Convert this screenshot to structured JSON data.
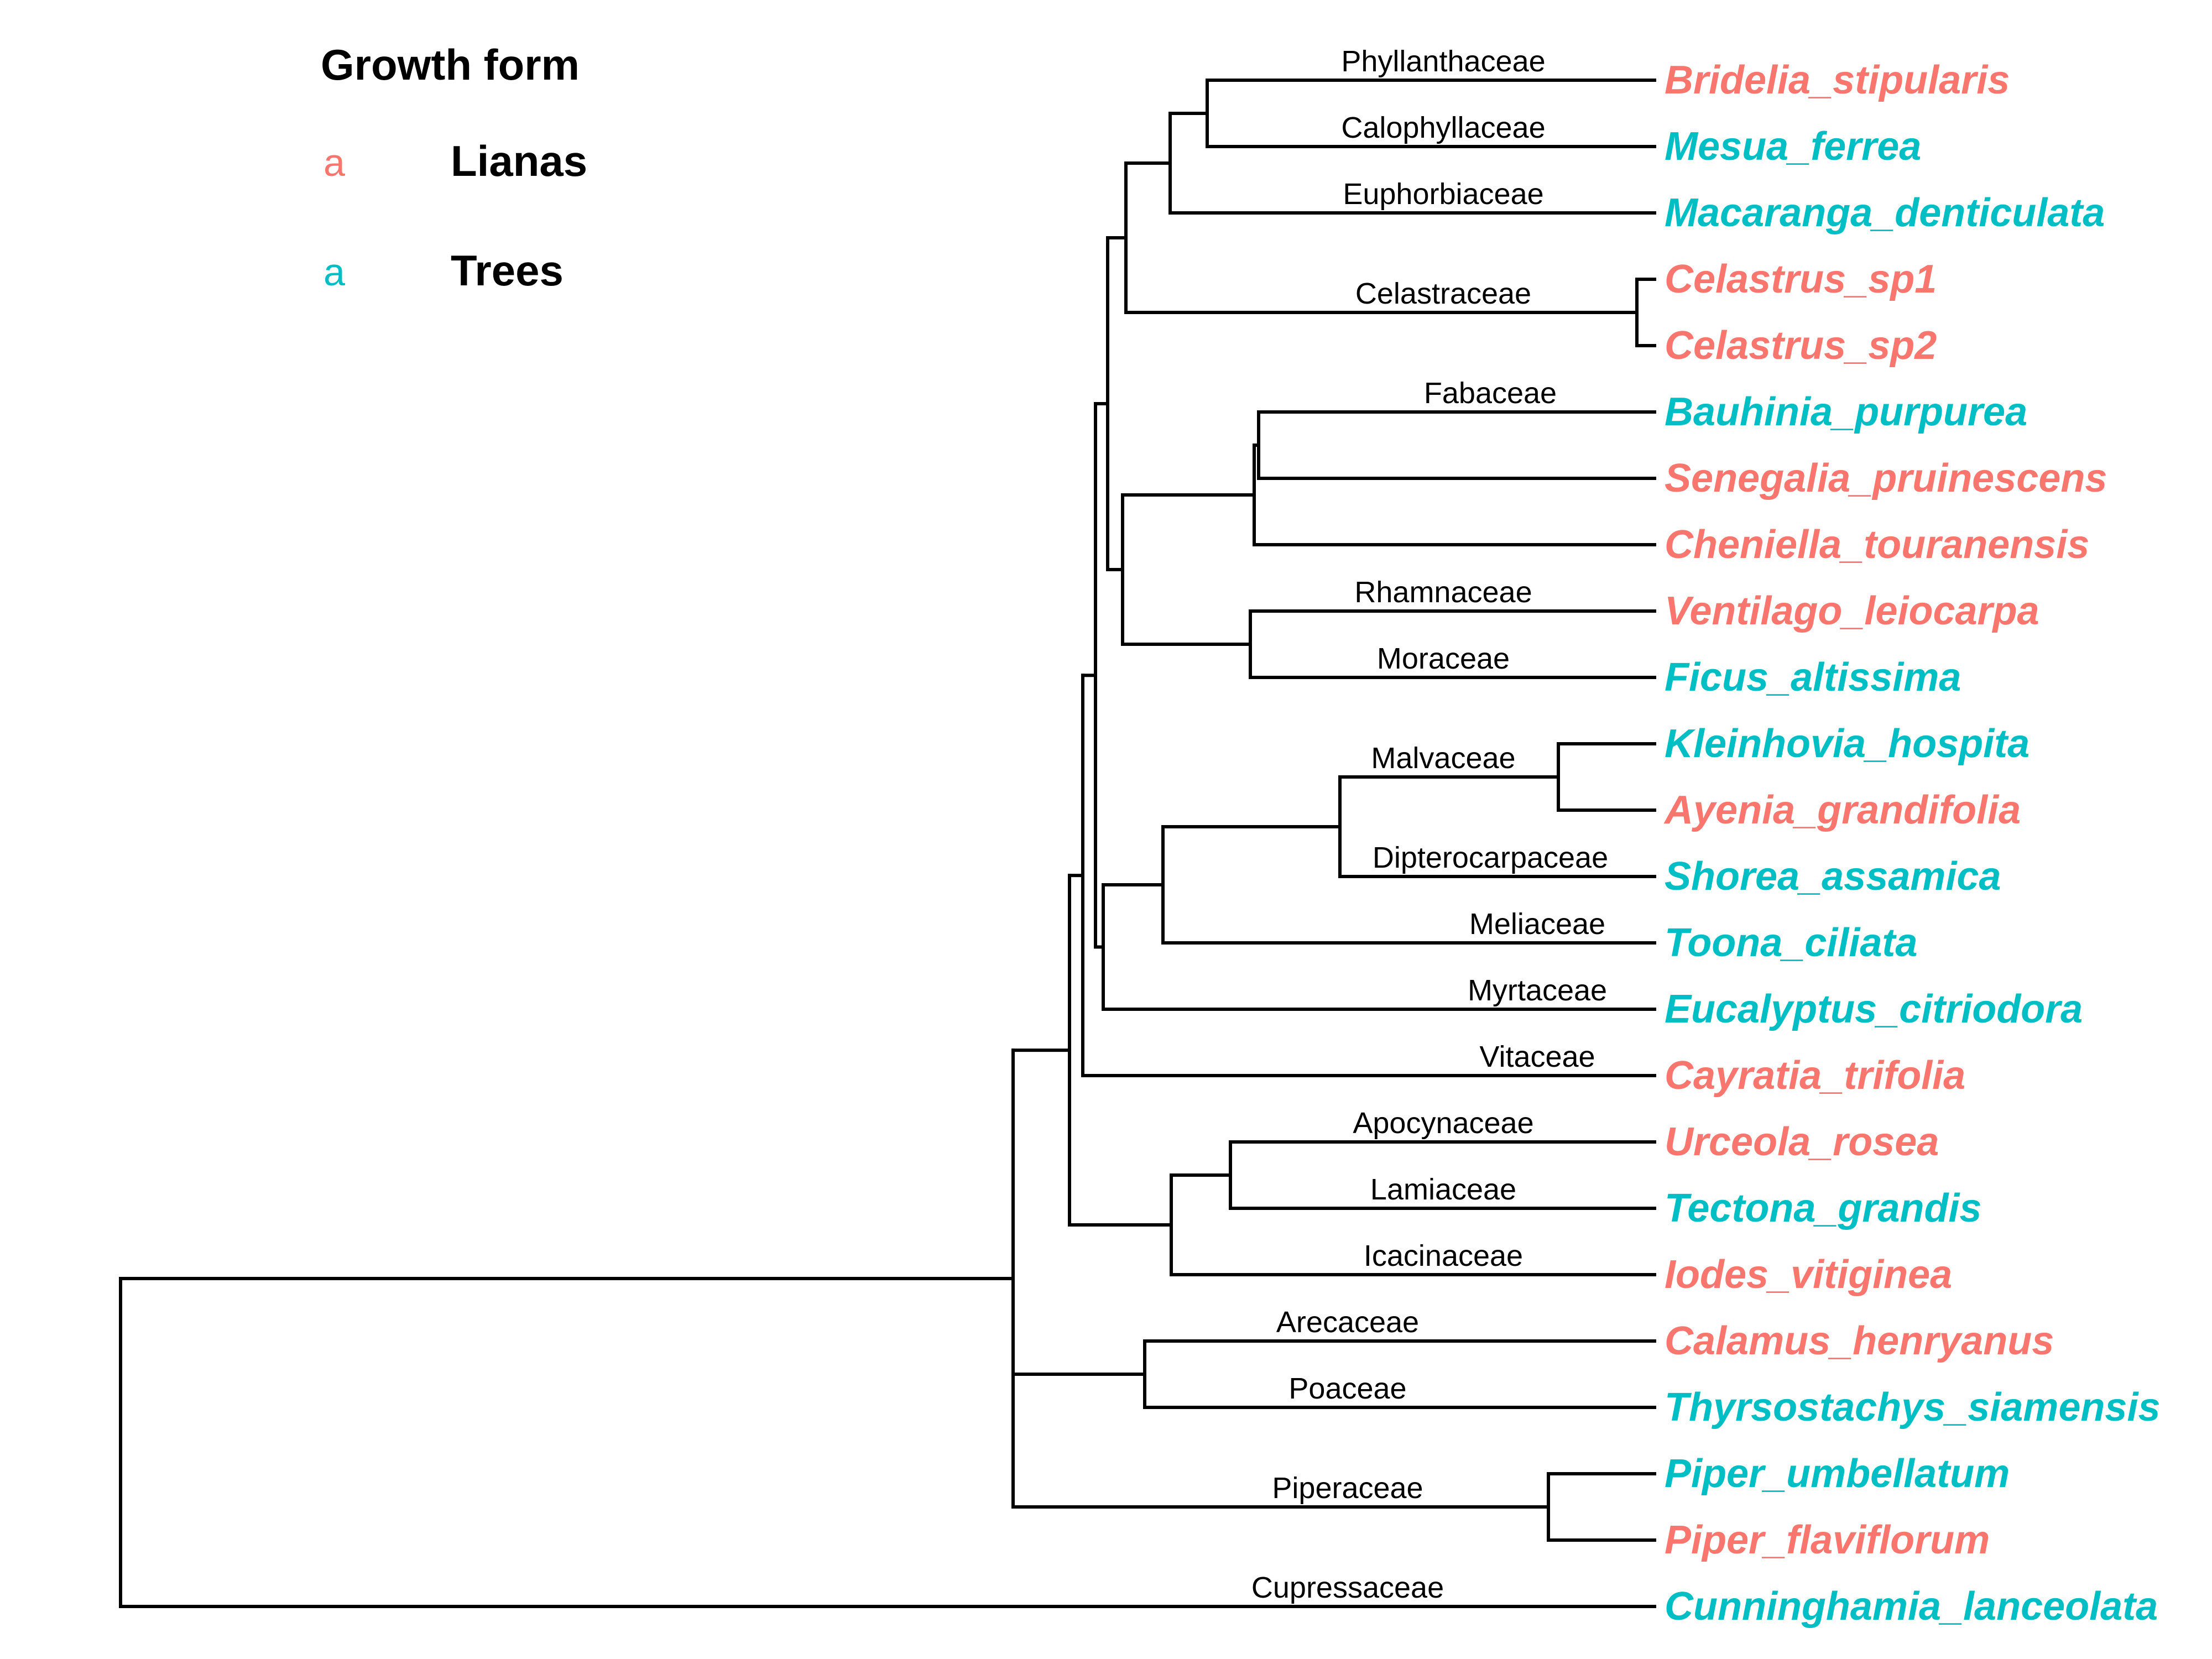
{
  "legend": {
    "title": "Growth form",
    "items": [
      {
        "key": "a",
        "label": "Lianas",
        "color": "#F8766D"
      },
      {
        "key": "a",
        "label": "Trees",
        "color": "#00BFC4"
      }
    ]
  },
  "colors": {
    "Lianas": "#F8766D",
    "Trees": "#00BFC4",
    "branch": "#000000"
  },
  "tips": [
    {
      "name": "Bridelia_stipularis",
      "family": "Phyllanthaceae",
      "growth_form": "Lianas"
    },
    {
      "name": "Mesua_ferrea",
      "family": "Calophyllaceae",
      "growth_form": "Trees"
    },
    {
      "name": "Macaranga_denticulata",
      "family": "Euphorbiaceae",
      "growth_form": "Trees"
    },
    {
      "name": "Celastrus_sp1",
      "family": "",
      "growth_form": "Lianas"
    },
    {
      "name": "Celastrus_sp2",
      "family": "",
      "growth_form": "Lianas"
    },
    {
      "name": "Bauhinia_purpurea",
      "family": "Fabaceae",
      "growth_form": "Trees"
    },
    {
      "name": "Senegalia_pruinescens",
      "family": "",
      "growth_form": "Lianas"
    },
    {
      "name": "Cheniella_touranensis",
      "family": "",
      "growth_form": "Lianas"
    },
    {
      "name": "Ventilago_leiocarpa",
      "family": "Rhamnaceae",
      "growth_form": "Lianas"
    },
    {
      "name": "Ficus_altissima",
      "family": "Moraceae",
      "growth_form": "Trees"
    },
    {
      "name": "Kleinhovia_hospita",
      "family": "",
      "growth_form": "Trees"
    },
    {
      "name": "Ayenia_grandifolia",
      "family": "",
      "growth_form": "Lianas"
    },
    {
      "name": "Shorea_assamica",
      "family": "Dipterocarpaceae",
      "growth_form": "Trees"
    },
    {
      "name": "Toona_ciliata",
      "family": "Meliaceae",
      "growth_form": "Trees"
    },
    {
      "name": "Eucalyptus_citriodora",
      "family": "Myrtaceae",
      "growth_form": "Trees"
    },
    {
      "name": "Cayratia_trifolia",
      "family": "Vitaceae",
      "growth_form": "Lianas"
    },
    {
      "name": "Urceola_rosea",
      "family": "Apocynaceae",
      "growth_form": "Lianas"
    },
    {
      "name": "Tectona_grandis",
      "family": "Lamiaceae",
      "growth_form": "Trees"
    },
    {
      "name": "Iodes_vitiginea",
      "family": "Icacinaceae",
      "growth_form": "Lianas"
    },
    {
      "name": "Calamus_henryanus",
      "family": "Arecaceae",
      "growth_form": "Lianas"
    },
    {
      "name": "Thyrsostachys_siamensis",
      "family": "Poaceae",
      "growth_form": "Trees"
    },
    {
      "name": "Piper_umbellatum",
      "family": "",
      "growth_form": "Trees"
    },
    {
      "name": "Piper_flaviflorum",
      "family": "",
      "growth_form": "Lianas"
    },
    {
      "name": "Cunninghamia_lanceolata",
      "family": "Cupressaceae",
      "growth_form": "Trees"
    }
  ],
  "clade_labels": [
    {
      "text": "Celastraceae",
      "members": [
        "Celastrus_sp1",
        "Celastrus_sp2"
      ]
    },
    {
      "text": "Malvaceae",
      "members": [
        "Kleinhovia_hospita",
        "Ayenia_grandifolia"
      ]
    },
    {
      "text": "Piperaceae",
      "members": [
        "Piper_umbellatum",
        "Piper_flaviflorum"
      ]
    }
  ]
}
